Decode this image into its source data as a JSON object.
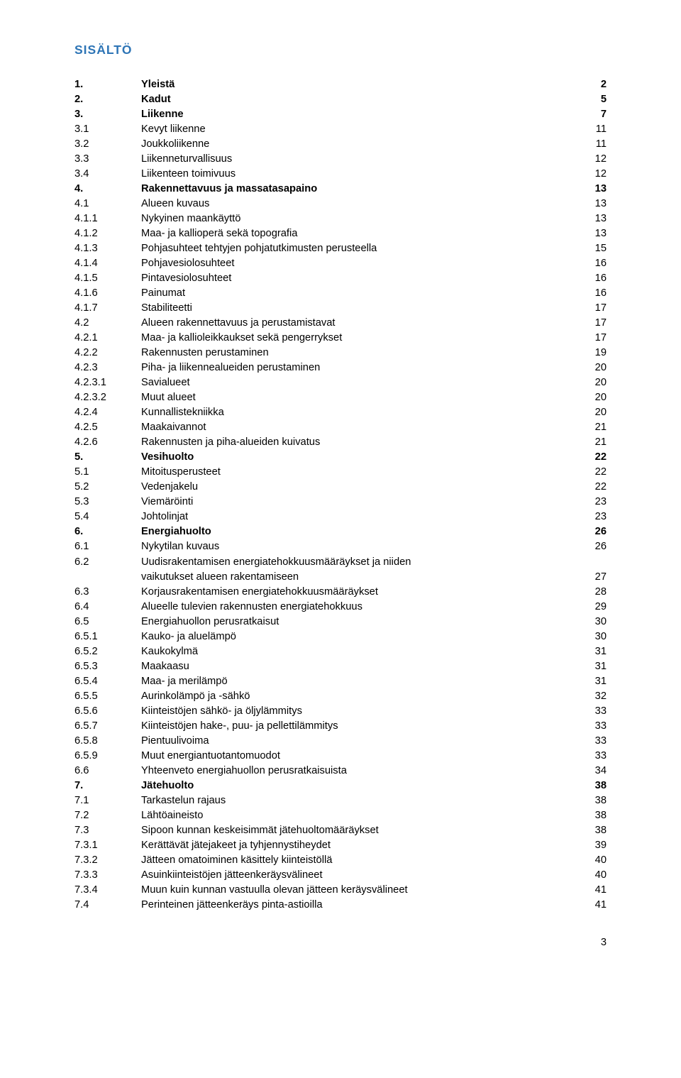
{
  "colors": {
    "title_color": "#2e75b6",
    "text_color": "#000000",
    "background": "#ffffff"
  },
  "typography": {
    "base_font_size_pt": 11,
    "title_font_size_pt": 13,
    "font_family": "Arial"
  },
  "doc_title": "SISÄLTÖ",
  "footer_page": "3",
  "toc": [
    {
      "num": "1.",
      "title": "Yleistä",
      "page": "2",
      "bold": true
    },
    {
      "num": "2.",
      "title": "Kadut",
      "page": "5",
      "bold": true
    },
    {
      "num": "3.",
      "title": "Liikenne",
      "page": "7",
      "bold": true
    },
    {
      "num": "3.1",
      "title": "Kevyt liikenne",
      "page": "11",
      "bold": false
    },
    {
      "num": "3.2",
      "title": "Joukkoliikenne",
      "page": "11",
      "bold": false
    },
    {
      "num": "3.3",
      "title": "Liikenneturvallisuus",
      "page": "12",
      "bold": false
    },
    {
      "num": "3.4",
      "title": "Liikenteen toimivuus",
      "page": "12",
      "bold": false
    },
    {
      "num": "4.",
      "title": "Rakennettavuus ja massatasapaino",
      "page": "13",
      "bold": true
    },
    {
      "num": "4.1",
      "title": "Alueen kuvaus",
      "page": "13",
      "bold": false
    },
    {
      "num": "4.1.1",
      "title": "Nykyinen maankäyttö",
      "page": "13",
      "bold": false
    },
    {
      "num": "4.1.2",
      "title": "Maa- ja kallioperä sekä topografia",
      "page": "13",
      "bold": false
    },
    {
      "num": "4.1.3",
      "title": "Pohjasuhteet tehtyjen pohjatutkimusten perusteella",
      "page": "15",
      "bold": false
    },
    {
      "num": "4.1.4",
      "title": "Pohjavesiolosuhteet",
      "page": "16",
      "bold": false
    },
    {
      "num": "4.1.5",
      "title": "Pintavesiolosuhteet",
      "page": "16",
      "bold": false
    },
    {
      "num": "4.1.6",
      "title": "Painumat",
      "page": "16",
      "bold": false
    },
    {
      "num": "4.1.7",
      "title": "Stabiliteetti",
      "page": "17",
      "bold": false
    },
    {
      "num": "4.2",
      "title": "Alueen rakennettavuus ja perustamistavat",
      "page": "17",
      "bold": false
    },
    {
      "num": "4.2.1",
      "title": "Maa- ja kallioleikkaukset sekä pengerrykset",
      "page": "17",
      "bold": false
    },
    {
      "num": "4.2.2",
      "title": "Rakennusten perustaminen",
      "page": "19",
      "bold": false
    },
    {
      "num": "4.2.3",
      "title": "Piha- ja liikennealueiden perustaminen",
      "page": "20",
      "bold": false
    },
    {
      "num": "4.2.3.1",
      "title": "Savialueet",
      "page": "20",
      "bold": false
    },
    {
      "num": "4.2.3.2",
      "title": "Muut alueet",
      "page": "20",
      "bold": false
    },
    {
      "num": "4.2.4",
      "title": "Kunnallistekniikka",
      "page": "20",
      "bold": false
    },
    {
      "num": "4.2.5",
      "title": "Maakaivannot",
      "page": "21",
      "bold": false
    },
    {
      "num": "4.2.6",
      "title": "Rakennusten ja piha-alueiden kuivatus",
      "page": "21",
      "bold": false
    },
    {
      "num": "5.",
      "title": "Vesihuolto",
      "page": "22",
      "bold": true
    },
    {
      "num": "5.1",
      "title": "Mitoitusperusteet",
      "page": "22",
      "bold": false
    },
    {
      "num": "5.2",
      "title": "Vedenjakelu",
      "page": "22",
      "bold": false
    },
    {
      "num": "5.3",
      "title": "Viemäröinti",
      "page": "23",
      "bold": false
    },
    {
      "num": "5.4",
      "title": "Johtolinjat",
      "page": "23",
      "bold": false
    },
    {
      "num": "6.",
      "title": "Energiahuolto",
      "page": "26",
      "bold": true
    },
    {
      "num": "6.1",
      "title": "Nykytilan kuvaus",
      "page": "26",
      "bold": false
    },
    {
      "num": "6.2",
      "title": "Uudisrakentamisen energiatehokkuusmääräykset ja niiden",
      "page": "",
      "bold": false,
      "nowrap_page": true
    },
    {
      "num": "",
      "title": "vaikutukset alueen rakentamiseen",
      "page": "27",
      "bold": false,
      "continuation": true
    },
    {
      "num": "6.3",
      "title": "Korjausrakentamisen energiatehokkuusmääräykset",
      "page": "28",
      "bold": false
    },
    {
      "num": "6.4",
      "title": "Alueelle tulevien rakennusten energiatehokkuus",
      "page": "29",
      "bold": false
    },
    {
      "num": "6.5",
      "title": "Energiahuollon perusratkaisut",
      "page": "30",
      "bold": false
    },
    {
      "num": "6.5.1",
      "title": "Kauko- ja aluelämpö",
      "page": "30",
      "bold": false
    },
    {
      "num": "6.5.2",
      "title": "Kaukokylmä",
      "page": "31",
      "bold": false
    },
    {
      "num": "6.5.3",
      "title": "Maakaasu",
      "page": "31",
      "bold": false
    },
    {
      "num": "6.5.4",
      "title": "Maa- ja merilämpö",
      "page": "31",
      "bold": false
    },
    {
      "num": "6.5.5",
      "title": "Aurinkolämpö ja -sähkö",
      "page": "32",
      "bold": false
    },
    {
      "num": "6.5.6",
      "title": "Kiinteistöjen sähkö- ja öljylämmitys",
      "page": "33",
      "bold": false
    },
    {
      "num": "6.5.7",
      "title": "Kiinteistöjen hake-, puu- ja pellettilämmitys",
      "page": "33",
      "bold": false
    },
    {
      "num": "6.5.8",
      "title": "Pientuulivoima",
      "page": "33",
      "bold": false
    },
    {
      "num": "6.5.9",
      "title": "Muut energiantuotantomuodot",
      "page": "33",
      "bold": false
    },
    {
      "num": "6.6",
      "title": "Yhteenveto energiahuollon perusratkaisuista",
      "page": "34",
      "bold": false
    },
    {
      "num": "7.",
      "title": "Jätehuolto",
      "page": "38",
      "bold": true
    },
    {
      "num": "7.1",
      "title": "Tarkastelun rajaus",
      "page": "38",
      "bold": false
    },
    {
      "num": "7.2",
      "title": "Lähtöaineisto",
      "page": "38",
      "bold": false
    },
    {
      "num": "7.3",
      "title": "Sipoon kunnan keskeisimmät jätehuoltomääräykset",
      "page": "38",
      "bold": false
    },
    {
      "num": "7.3.1",
      "title": "Kerättävät jätejakeet ja tyhjennystiheydet",
      "page": "39",
      "bold": false
    },
    {
      "num": "7.3.2",
      "title": "Jätteen omatoiminen käsittely kiinteistöllä",
      "page": "40",
      "bold": false
    },
    {
      "num": "7.3.3",
      "title": "Asuinkiinteistöjen jätteenkeräysvälineet",
      "page": "40",
      "bold": false
    },
    {
      "num": "7.3.4",
      "title": "Muun kuin kunnan vastuulla olevan jätteen keräysvälineet",
      "page": "41",
      "bold": false
    },
    {
      "num": "7.4",
      "title": "Perinteinen jätteenkeräys pinta-astioilla",
      "page": "41",
      "bold": false
    }
  ]
}
